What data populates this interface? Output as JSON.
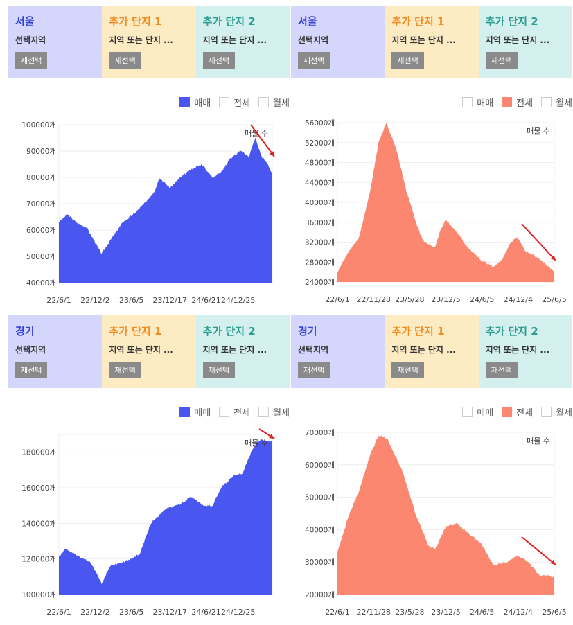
{
  "legend": [
    "매매",
    "전세",
    "월세"
  ],
  "reselect": "재선택",
  "extra1": {
    "title": "추가 단지 1",
    "sub": "지역 또는 단지 ..."
  },
  "extra2": {
    "title": "추가 단지 2",
    "sub": "지역 또는 단지 ..."
  },
  "colors": {
    "sale": "#4a56f0",
    "jeonse": "#fc8770",
    "region_bg": "#d4d6fb",
    "extra1_bg": "#fdebc4",
    "extra2_bg": "#d3f0ee",
    "region_fg": "#3340e0",
    "extra1_fg": "#f28a1e",
    "extra2_fg": "#2a9d8f",
    "arrow": "#e02020"
  },
  "panels": [
    {
      "region": "서울",
      "region_sub": "선택지역",
      "active": 0
    },
    {
      "region": "서울",
      "region_sub": "선택지역",
      "active": 1
    },
    {
      "region": "경기",
      "region_sub": "선택지역",
      "active": 0
    },
    {
      "region": "경기",
      "region_sub": "선택지역",
      "active": 1
    }
  ],
  "chart_data": [
    {
      "type": "area",
      "title": "매물 수",
      "series": "매매",
      "unit": "개",
      "ylim": [
        40000,
        100000
      ],
      "yticks": [
        40000,
        50000,
        60000,
        70000,
        80000,
        90000,
        100000
      ],
      "xticks": [
        "22/6/1",
        "22/12/2",
        "23/6/5",
        "23/12/17",
        "24/6/21",
        "24/12/25"
      ],
      "xtick_pos": [
        0,
        0.17,
        0.34,
        0.52,
        0.69,
        0.84
      ],
      "points": [
        [
          0,
          63000
        ],
        [
          0.04,
          66000
        ],
        [
          0.08,
          63000
        ],
        [
          0.13,
          61000
        ],
        [
          0.2,
          51000
        ],
        [
          0.24,
          56000
        ],
        [
          0.3,
          63000
        ],
        [
          0.35,
          66000
        ],
        [
          0.4,
          70000
        ],
        [
          0.45,
          75000
        ],
        [
          0.47,
          80000
        ],
        [
          0.52,
          76000
        ],
        [
          0.57,
          80000
        ],
        [
          0.62,
          83000
        ],
        [
          0.67,
          85000
        ],
        [
          0.72,
          80000
        ],
        [
          0.76,
          82000
        ],
        [
          0.8,
          87000
        ],
        [
          0.85,
          90000
        ],
        [
          0.89,
          88000
        ],
        [
          0.92,
          95000
        ],
        [
          0.95,
          88000
        ],
        [
          0.98,
          85000
        ],
        [
          1,
          81000
        ]
      ]
    },
    {
      "type": "area",
      "title": "매물 수",
      "series": "전세",
      "unit": "개",
      "ylim": [
        24000,
        56000
      ],
      "yticks": [
        24000,
        28000,
        32000,
        36000,
        40000,
        44000,
        48000,
        52000,
        56000
      ],
      "xticks": [
        "22/6/1",
        "22/11/28",
        "23/5/28",
        "23/12/5",
        "24/6/5",
        "24/12/4",
        "25/6/5"
      ],
      "xtick_pos": [
        0,
        0.1667,
        0.3333,
        0.5,
        0.6667,
        0.8333,
        1
      ],
      "points": [
        [
          0,
          26000
        ],
        [
          0.05,
          30000
        ],
        [
          0.1,
          33000
        ],
        [
          0.15,
          42000
        ],
        [
          0.19,
          52000
        ],
        [
          0.225,
          56000
        ],
        [
          0.27,
          51000
        ],
        [
          0.32,
          42000
        ],
        [
          0.37,
          35000
        ],
        [
          0.4,
          32000
        ],
        [
          0.43,
          31500
        ],
        [
          0.45,
          31000
        ],
        [
          0.48,
          35000
        ],
        [
          0.5,
          36500
        ],
        [
          0.55,
          34000
        ],
        [
          0.6,
          31000
        ],
        [
          0.66,
          28500
        ],
        [
          0.72,
          27000
        ],
        [
          0.76,
          28500
        ],
        [
          0.8,
          32000
        ],
        [
          0.83,
          33000
        ],
        [
          0.87,
          30000
        ],
        [
          0.9,
          29500
        ],
        [
          0.95,
          28000
        ],
        [
          1,
          26000
        ]
      ]
    },
    {
      "type": "area",
      "title": "매물 수",
      "series": "매매",
      "unit": "개",
      "ylim": [
        100000,
        190000
      ],
      "yticks": [
        100000,
        120000,
        140000,
        160000,
        180000
      ],
      "xticks": [
        "22/6/1",
        "22/12/2",
        "23/6/5",
        "23/12/17",
        "24/6/21",
        "24/12/25"
      ],
      "xtick_pos": [
        0,
        0.17,
        0.34,
        0.52,
        0.69,
        0.84
      ],
      "points": [
        [
          0,
          121000
        ],
        [
          0.03,
          126000
        ],
        [
          0.1,
          121000
        ],
        [
          0.15,
          118000
        ],
        [
          0.2,
          106000
        ],
        [
          0.24,
          116000
        ],
        [
          0.3,
          118000
        ],
        [
          0.38,
          123000
        ],
        [
          0.43,
          140000
        ],
        [
          0.5,
          148000
        ],
        [
          0.57,
          151000
        ],
        [
          0.62,
          155000
        ],
        [
          0.68,
          150000
        ],
        [
          0.72,
          150000
        ],
        [
          0.76,
          160000
        ],
        [
          0.82,
          167000
        ],
        [
          0.86,
          168000
        ],
        [
          0.9,
          180000
        ],
        [
          0.94,
          187000
        ],
        [
          1,
          186000
        ]
      ]
    },
    {
      "type": "area",
      "title": "매물 수",
      "series": "전세",
      "unit": "개",
      "ylim": [
        20000,
        70000
      ],
      "yticks": [
        20000,
        30000,
        40000,
        50000,
        60000,
        70000
      ],
      "xticks": [
        "22/6/1",
        "22/11/28",
        "23/5/28",
        "23/12/5",
        "24/6/5",
        "24/12/4",
        "25/6/5"
      ],
      "xtick_pos": [
        0,
        0.1667,
        0.3333,
        0.5,
        0.6667,
        0.8333,
        1
      ],
      "points": [
        [
          0,
          33000
        ],
        [
          0.05,
          44000
        ],
        [
          0.1,
          52000
        ],
        [
          0.15,
          63000
        ],
        [
          0.19,
          69000
        ],
        [
          0.23,
          68000
        ],
        [
          0.3,
          58000
        ],
        [
          0.36,
          45000
        ],
        [
          0.42,
          35000
        ],
        [
          0.45,
          34000
        ],
        [
          0.5,
          41000
        ],
        [
          0.55,
          42000
        ],
        [
          0.6,
          39000
        ],
        [
          0.66,
          36000
        ],
        [
          0.72,
          29000
        ],
        [
          0.78,
          30000
        ],
        [
          0.83,
          32000
        ],
        [
          0.88,
          30000
        ],
        [
          0.93,
          26000
        ],
        [
          1,
          25500
        ]
      ]
    }
  ]
}
